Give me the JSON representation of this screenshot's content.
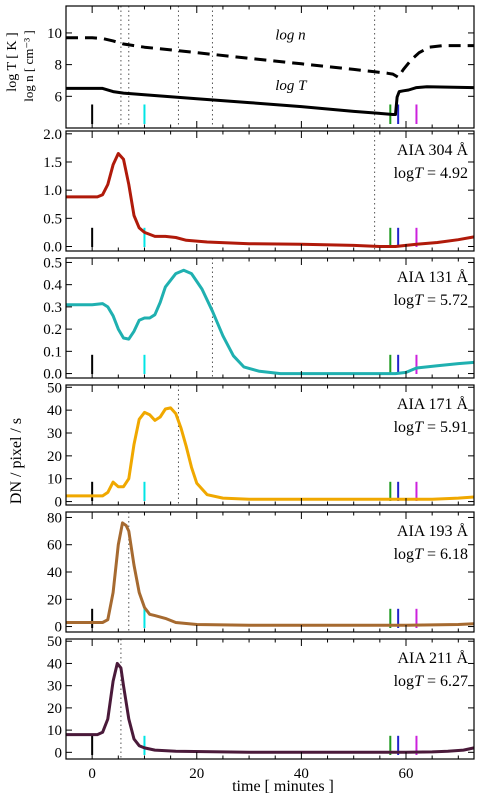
{
  "figure": {
    "xlabel": "time  [ minutes ]",
    "shared_ylabel": "DN / pixel / s",
    "top_ylabel_T": "log T [ K ]",
    "top_ylabel_n": "log n  [ cm⁻³ ]",
    "xlim": [
      -5,
      73
    ],
    "xticks": [
      0,
      20,
      40,
      60
    ],
    "markers": [
      {
        "x": 0,
        "color": "#000000"
      },
      {
        "x": 10,
        "color": "#00e5e5"
      },
      {
        "x": 57,
        "color": "#1f9a1f"
      },
      {
        "x": 58.5,
        "color": "#2222cc"
      },
      {
        "x": 62,
        "color": "#cc22dd"
      }
    ]
  },
  "chart_data": [
    {
      "type": "line",
      "title": "",
      "ylim": [
        4,
        11.7
      ],
      "yticks": [
        6,
        8,
        10
      ],
      "vlines": [
        5.5,
        7,
        16.5,
        23,
        54
      ],
      "series": [
        {
          "name": "log n",
          "color": "#000000",
          "dash": true,
          "points": [
            [
              -5,
              9.7
            ],
            [
              0,
              9.7
            ],
            [
              2,
              9.65
            ],
            [
              4,
              9.5
            ],
            [
              6,
              9.3
            ],
            [
              8,
              9.2
            ],
            [
              10,
              9.1
            ],
            [
              16,
              8.9
            ],
            [
              20,
              8.75
            ],
            [
              30,
              8.4
            ],
            [
              40,
              8.05
            ],
            [
              50,
              7.7
            ],
            [
              54,
              7.55
            ],
            [
              56.5,
              7.45
            ],
            [
              57.5,
              7.4
            ],
            [
              58.5,
              7.2
            ],
            [
              59.5,
              7.7
            ],
            [
              61,
              8.3
            ],
            [
              62.5,
              8.75
            ],
            [
              64.5,
              9.1
            ],
            [
              67,
              9.2
            ],
            [
              73,
              9.2
            ]
          ]
        },
        {
          "name": "log T",
          "color": "#000000",
          "dash": false,
          "points": [
            [
              -5,
              6.5
            ],
            [
              0,
              6.5
            ],
            [
              2,
              6.5
            ],
            [
              4,
              6.3
            ],
            [
              6,
              6.2
            ],
            [
              10,
              6.1
            ],
            [
              20,
              5.85
            ],
            [
              30,
              5.6
            ],
            [
              40,
              5.35
            ],
            [
              50,
              5.05
            ],
            [
              55,
              4.92
            ],
            [
              57.5,
              4.85
            ],
            [
              58,
              4.85
            ],
            [
              58.3,
              5.95
            ],
            [
              58.7,
              6.3
            ],
            [
              59.5,
              6.35
            ],
            [
              60.5,
              6.4
            ],
            [
              62,
              6.55
            ],
            [
              64,
              6.6
            ],
            [
              73,
              6.55
            ]
          ]
        }
      ],
      "annotations": [
        {
          "text": "log n",
          "x": 35,
          "y": 9.6
        },
        {
          "text": "log T",
          "x": 35,
          "y": 6.4
        }
      ]
    },
    {
      "type": "line",
      "title": "",
      "channel": "AIA 304 Å",
      "logT_value": "4.92",
      "ylim": [
        -0.08,
        2.05
      ],
      "yticks": [
        "0.0",
        "0.5",
        "1.0",
        "1.5",
        "2.0"
      ],
      "vlines": [
        54
      ],
      "series": [
        {
          "color": "#b01a0a",
          "points": [
            [
              -5,
              0.88
            ],
            [
              0,
              0.88
            ],
            [
              1,
              0.88
            ],
            [
              2,
              0.92
            ],
            [
              3,
              1.1
            ],
            [
              4,
              1.45
            ],
            [
              5,
              1.65
            ],
            [
              6,
              1.55
            ],
            [
              7,
              1.1
            ],
            [
              8,
              0.55
            ],
            [
              9,
              0.33
            ],
            [
              10,
              0.25
            ],
            [
              12,
              0.18
            ],
            [
              14,
              0.18
            ],
            [
              16,
              0.16
            ],
            [
              18,
              0.11
            ],
            [
              22,
              0.08
            ],
            [
              30,
              0.05
            ],
            [
              40,
              0.04
            ],
            [
              50,
              0.02
            ],
            [
              55,
              0.0
            ],
            [
              58,
              0.0
            ],
            [
              62,
              0.04
            ],
            [
              66,
              0.07
            ],
            [
              70,
              0.12
            ],
            [
              73,
              0.17
            ]
          ]
        }
      ]
    },
    {
      "type": "line",
      "title": "",
      "channel": "AIA 131 Å",
      "logT_value": "5.72",
      "ylim": [
        -0.02,
        0.52
      ],
      "yticks": [
        "0.0",
        "0.1",
        "0.2",
        "0.3",
        "0.4",
        "0.5"
      ],
      "vlines": [
        23
      ],
      "series": [
        {
          "color": "#1fb0b0",
          "points": [
            [
              -5,
              0.31
            ],
            [
              0,
              0.31
            ],
            [
              2,
              0.315
            ],
            [
              3,
              0.3
            ],
            [
              4,
              0.26
            ],
            [
              5,
              0.2
            ],
            [
              6,
              0.16
            ],
            [
              7,
              0.155
            ],
            [
              8,
              0.19
            ],
            [
              9,
              0.24
            ],
            [
              10,
              0.25
            ],
            [
              11,
              0.25
            ],
            [
              12,
              0.265
            ],
            [
              13,
              0.32
            ],
            [
              14,
              0.39
            ],
            [
              16,
              0.45
            ],
            [
              17.5,
              0.465
            ],
            [
              19,
              0.45
            ],
            [
              21,
              0.38
            ],
            [
              23,
              0.28
            ],
            [
              25,
              0.17
            ],
            [
              27,
              0.08
            ],
            [
              29,
              0.03
            ],
            [
              32,
              0.01
            ],
            [
              36,
              0.0
            ],
            [
              58,
              0.0
            ],
            [
              60,
              0.005
            ],
            [
              62,
              0.025
            ],
            [
              66,
              0.035
            ],
            [
              70,
              0.045
            ],
            [
              73,
              0.05
            ]
          ]
        }
      ]
    },
    {
      "type": "line",
      "title": "",
      "channel": "AIA 171 Å",
      "logT_value": "5.91",
      "ylim": [
        -1.5,
        51
      ],
      "yticks": [
        "0",
        "10",
        "20",
        "30",
        "40",
        "50"
      ],
      "vlines": [
        16.5
      ],
      "series": [
        {
          "color": "#f0a800",
          "points": [
            [
              -5,
              2.5
            ],
            [
              0,
              2.5
            ],
            [
              2,
              2.5
            ],
            [
              3,
              4
            ],
            [
              4,
              8.5
            ],
            [
              5,
              6.5
            ],
            [
              6,
              6.5
            ],
            [
              7,
              10
            ],
            [
              8,
              25
            ],
            [
              9,
              36
            ],
            [
              10,
              39
            ],
            [
              11,
              38
            ],
            [
              12,
              35.5
            ],
            [
              13,
              37
            ],
            [
              14,
              40.5
            ],
            [
              15,
              41
            ],
            [
              16,
              38.5
            ],
            [
              17,
              32
            ],
            [
              18,
              24
            ],
            [
              19,
              15
            ],
            [
              20,
              8
            ],
            [
              22,
              3
            ],
            [
              25,
              1.5
            ],
            [
              30,
              1
            ],
            [
              60,
              1
            ],
            [
              65,
              1
            ],
            [
              70,
              1.5
            ],
            [
              73,
              2
            ]
          ]
        }
      ]
    },
    {
      "type": "line",
      "title": "",
      "channel": "AIA 193 Å",
      "logT_value": "6.18",
      "ylim": [
        -4,
        84
      ],
      "yticks": [
        "0",
        "20",
        "40",
        "60",
        "80"
      ],
      "vlines": [
        7
      ],
      "series": [
        {
          "color": "#a66a30",
          "points": [
            [
              -5,
              3
            ],
            [
              0,
              3
            ],
            [
              2,
              3
            ],
            [
              3,
              5
            ],
            [
              4,
              25
            ],
            [
              5,
              60
            ],
            [
              5.8,
              76
            ],
            [
              6.5,
              74
            ],
            [
              7,
              70
            ],
            [
              8,
              45
            ],
            [
              9,
              25
            ],
            [
              10,
              14
            ],
            [
              11,
              9
            ],
            [
              12,
              8
            ],
            [
              14,
              6
            ],
            [
              16,
              3
            ],
            [
              20,
              1.5
            ],
            [
              30,
              1
            ],
            [
              60,
              1
            ],
            [
              70,
              1.5
            ],
            [
              73,
              2
            ]
          ]
        }
      ]
    },
    {
      "type": "line",
      "title": "",
      "channel": "AIA 211 Å",
      "logT_value": "6.27",
      "ylim": [
        -3,
        51
      ],
      "yticks": [
        "0",
        "10",
        "20",
        "30",
        "40",
        "50"
      ],
      "vlines": [
        5.5
      ],
      "series": [
        {
          "color": "#4a1a3a",
          "points": [
            [
              -5,
              8
            ],
            [
              0,
              8
            ],
            [
              1,
              8
            ],
            [
              2,
              9
            ],
            [
              3,
              15
            ],
            [
              4,
              32
            ],
            [
              4.8,
              40
            ],
            [
              5.5,
              38
            ],
            [
              6,
              30
            ],
            [
              7,
              15
            ],
            [
              8,
              6
            ],
            [
              9,
              3
            ],
            [
              10,
              2
            ],
            [
              12,
              1
            ],
            [
              16,
              0.5
            ],
            [
              30,
              0
            ],
            [
              60,
              0
            ],
            [
              65,
              0.2
            ],
            [
              68,
              0.5
            ],
            [
              71,
              1
            ],
            [
              73,
              2
            ]
          ]
        }
      ]
    }
  ]
}
